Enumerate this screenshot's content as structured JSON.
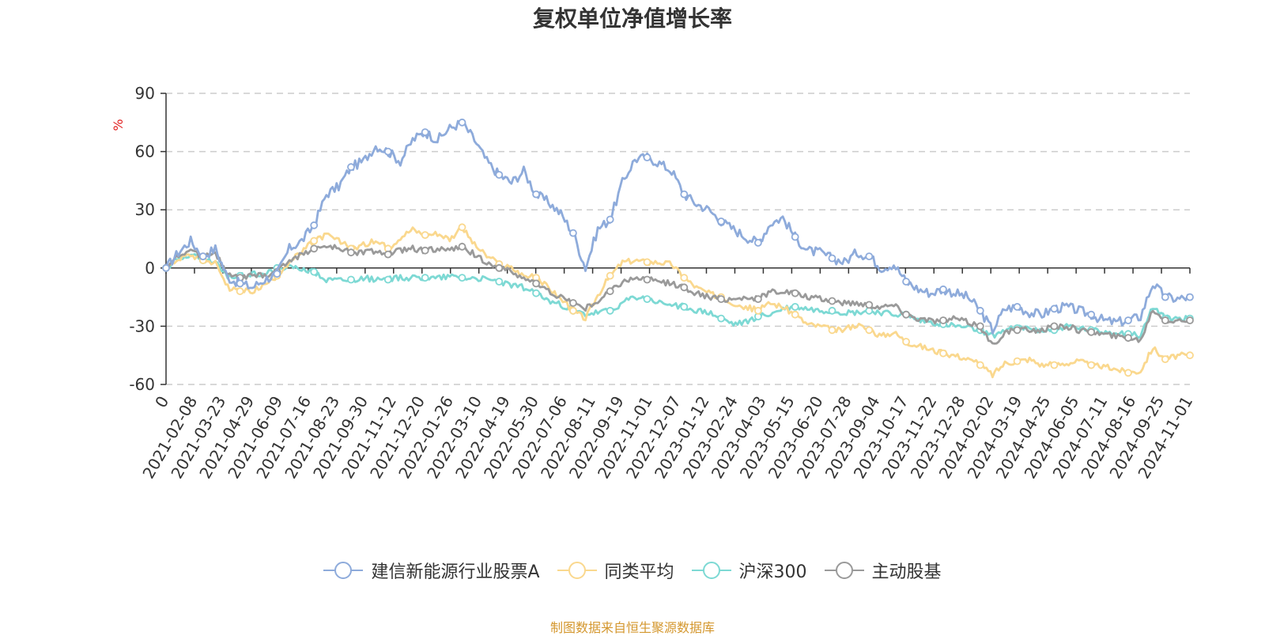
{
  "chart_data": {
    "type": "line",
    "title": "复权单位净值增长率",
    "ylabel": "%",
    "ylim": [
      -60,
      90
    ],
    "yticks": [
      -60,
      -30,
      0,
      30,
      60,
      90
    ],
    "grid": true,
    "x_range": [
      "2021-01-04",
      "2024-11-01"
    ],
    "xticks": [
      "0",
      "2021-02-08",
      "2021-03-23",
      "2021-04-29",
      "2021-06-09",
      "2021-07-16",
      "2021-08-23",
      "2021-09-30",
      "2021-11-12",
      "2021-12-20",
      "2022-01-26",
      "2022-03-10",
      "2022-04-19",
      "2022-05-30",
      "2022-07-06",
      "2022-08-11",
      "2022-09-19",
      "2022-11-01",
      "2022-12-07",
      "2023-01-12",
      "2023-02-24",
      "2023-04-03",
      "2023-05-15",
      "2023-06-20",
      "2023-07-28",
      "2023-09-04",
      "2023-10-17",
      "2023-11-22",
      "2023-12-28",
      "2024-02-02",
      "2024-03-19",
      "2024-04-25",
      "2024-06-05",
      "2024-07-11",
      "2024-08-16",
      "2024-09-25",
      "2024-11-01"
    ],
    "series": [
      {
        "name": "建信新能源行业股票A",
        "color": "#8eabdb",
        "values": [
          0,
          8,
          14,
          6,
          10,
          -5,
          -8,
          -10,
          -6,
          -3,
          10,
          14,
          22,
          38,
          42,
          52,
          55,
          63,
          60,
          55,
          66,
          70,
          66,
          72,
          75,
          66,
          55,
          48,
          44,
          50,
          38,
          34,
          28,
          18,
          0,
          20,
          25,
          44,
          56,
          57,
          54,
          50,
          38,
          33,
          30,
          24,
          20,
          16,
          13,
          23,
          26,
          16,
          9,
          8,
          5,
          3,
          8,
          6,
          0,
          2,
          -7,
          -11,
          -13,
          -11,
          -13,
          -15,
          -22,
          -32,
          -21,
          -20,
          -23,
          -24,
          -21,
          -20,
          -22,
          -24,
          -27,
          -28,
          -27,
          -25,
          -8,
          -15,
          -16,
          -15
        ]
      },
      {
        "name": "同类平均",
        "color": "#fad88e",
        "values": [
          0,
          5,
          7,
          4,
          3,
          -10,
          -12,
          -12,
          -9,
          -4,
          3,
          8,
          14,
          17,
          14,
          10,
          12,
          14,
          10,
          16,
          20,
          17,
          18,
          15,
          21,
          12,
          6,
          2,
          0,
          -4,
          -5,
          -10,
          -16,
          -22,
          -26,
          -14,
          -4,
          3,
          4,
          3,
          3,
          2,
          -5,
          -10,
          -13,
          -15,
          -18,
          -20,
          -22,
          -18,
          -20,
          -24,
          -29,
          -30,
          -32,
          -32,
          -29,
          -32,
          -35,
          -33,
          -38,
          -40,
          -42,
          -44,
          -45,
          -47,
          -50,
          -55,
          -49,
          -48,
          -47,
          -50,
          -50,
          -49,
          -48,
          -50,
          -51,
          -52,
          -54,
          -53,
          -41,
          -47,
          -45,
          -45
        ]
      },
      {
        "name": "沪深300",
        "color": "#7dd9d4",
        "values": [
          0,
          5,
          7,
          4,
          3,
          -5,
          -4,
          -3,
          -3,
          0,
          0,
          0,
          -2,
          -6,
          -6,
          -6,
          -5,
          -6,
          -6,
          -5,
          -5,
          -5,
          -5,
          -4,
          -5,
          -5,
          -6,
          -7,
          -9,
          -10,
          -13,
          -17,
          -19,
          -22,
          -24,
          -23,
          -22,
          -18,
          -15,
          -16,
          -18,
          -19,
          -20,
          -22,
          -23,
          -26,
          -29,
          -28,
          -25,
          -24,
          -21,
          -20,
          -21,
          -22,
          -22,
          -23,
          -23,
          -22,
          -23,
          -24,
          -24,
          -27,
          -28,
          -29,
          -30,
          -31,
          -32,
          -35,
          -32,
          -31,
          -31,
          -32,
          -32,
          -30,
          -31,
          -32,
          -33,
          -33,
          -34,
          -35,
          -20,
          -26,
          -26,
          -26
        ]
      },
      {
        "name": "主动股基",
        "color": "#9a9a9a",
        "values": [
          0,
          6,
          9,
          6,
          8,
          -4,
          -5,
          -4,
          -4,
          -2,
          4,
          7,
          10,
          11,
          10,
          8,
          8,
          9,
          7,
          9,
          10,
          9,
          10,
          9,
          11,
          7,
          3,
          0,
          -2,
          -5,
          -8,
          -12,
          -15,
          -18,
          -21,
          -17,
          -12,
          -7,
          -5,
          -6,
          -7,
          -8,
          -10,
          -13,
          -15,
          -16,
          -16,
          -15,
          -16,
          -12,
          -12,
          -13,
          -15,
          -16,
          -17,
          -18,
          -18,
          -19,
          -20,
          -19,
          -24,
          -26,
          -27,
          -27,
          -26,
          -28,
          -30,
          -40,
          -33,
          -32,
          -32,
          -32,
          -30,
          -30,
          -32,
          -33,
          -34,
          -35,
          -36,
          -37,
          -21,
          -27,
          -27,
          -27
        ]
      }
    ]
  },
  "legend": {
    "items": [
      "建信新能源行业股票A",
      "同类平均",
      "沪深300",
      "主动股基"
    ]
  },
  "footer": {
    "source": "制图数据来自恒生聚源数据库"
  }
}
